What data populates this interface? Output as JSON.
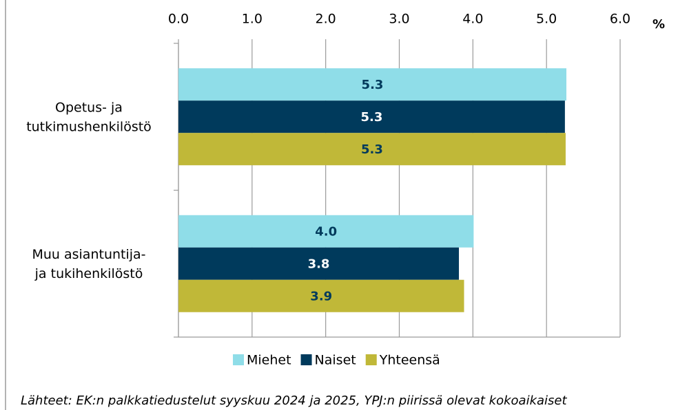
{
  "chart_data": {
    "type": "bar",
    "orientation": "horizontal",
    "categories": [
      [
        "Opetus- ja",
        "tutkimushenkilöstö"
      ],
      [
        "Muu asiantuntija-",
        "ja tukihenkilöstö"
      ]
    ],
    "series": [
      {
        "name": "Miehet",
        "color": "#8fdde8",
        "values": [
          5.27,
          4.01
        ],
        "value_labels": [
          "5.3",
          "4.0"
        ]
      },
      {
        "name": "Naiset",
        "color": "#003a5c",
        "values": [
          5.25,
          3.81
        ],
        "value_labels": [
          "5.3",
          "3.8"
        ]
      },
      {
        "name": "Yhteensä",
        "color": "#c0b838",
        "values": [
          5.26,
          3.88
        ],
        "value_labels": [
          "5.3",
          "3.9"
        ]
      }
    ],
    "xlabel": "%",
    "xlim": [
      0,
      6
    ],
    "xticks": [
      {
        "value": 0,
        "label": "0.0"
      },
      {
        "value": 1,
        "label": "1.0"
      },
      {
        "value": 2,
        "label": "2.0"
      },
      {
        "value": 3,
        "label": "3.0"
      },
      {
        "value": 4,
        "label": "4.0"
      },
      {
        "value": 5,
        "label": "5.0"
      },
      {
        "value": 6,
        "label": "6.0"
      }
    ],
    "grid": true,
    "legend": "bottom",
    "note": "Lähteet: EK:n palkkatiedustelut syyskuu 2024 ja 2025, YPJ:n piirissä olevat kokoaikaiset"
  }
}
